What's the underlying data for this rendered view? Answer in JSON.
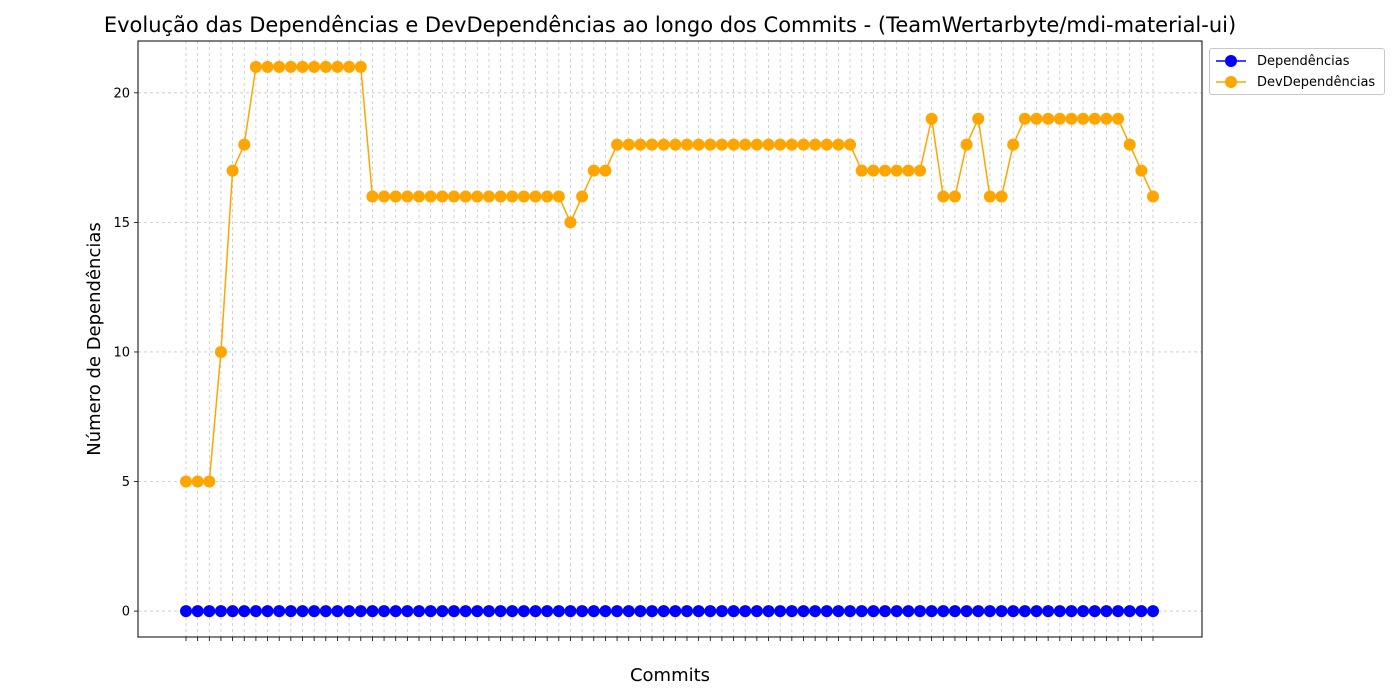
{
  "chart_data": {
    "type": "line",
    "title": "Evolução das Dependências e DevDependências ao longo dos Commits - (TeamWertarbyte/mdi-material-ui)",
    "xlabel": "Commits",
    "ylabel": "Número de Dependências",
    "ylim": [
      -1,
      22
    ],
    "yticks": [
      0,
      5,
      10,
      15,
      20
    ],
    "grid": true,
    "legend_position": "upper right, outside plot",
    "num_commits": 84,
    "series": [
      {
        "name": "Dependências",
        "color": "#0000ff",
        "values": [
          0,
          0,
          0,
          0,
          0,
          0,
          0,
          0,
          0,
          0,
          0,
          0,
          0,
          0,
          0,
          0,
          0,
          0,
          0,
          0,
          0,
          0,
          0,
          0,
          0,
          0,
          0,
          0,
          0,
          0,
          0,
          0,
          0,
          0,
          0,
          0,
          0,
          0,
          0,
          0,
          0,
          0,
          0,
          0,
          0,
          0,
          0,
          0,
          0,
          0,
          0,
          0,
          0,
          0,
          0,
          0,
          0,
          0,
          0,
          0,
          0,
          0,
          0,
          0,
          0,
          0,
          0,
          0,
          0,
          0,
          0,
          0,
          0,
          0,
          0,
          0,
          0,
          0,
          0,
          0,
          0,
          0,
          0,
          0
        ]
      },
      {
        "name": "DevDependências",
        "color": "#ffa500",
        "values": [
          5,
          5,
          5,
          10,
          17,
          18,
          21,
          21,
          21,
          21,
          21,
          21,
          21,
          21,
          21,
          21,
          16,
          16,
          16,
          16,
          16,
          16,
          16,
          16,
          16,
          16,
          16,
          16,
          16,
          16,
          16,
          16,
          16,
          15,
          16,
          17,
          17,
          18,
          18,
          18,
          18,
          18,
          18,
          18,
          18,
          18,
          18,
          18,
          18,
          18,
          18,
          18,
          18,
          18,
          18,
          18,
          18,
          18,
          17,
          17,
          17,
          17,
          17,
          17,
          19,
          16,
          16,
          18,
          19,
          16,
          16,
          18,
          19,
          19,
          19,
          19,
          19,
          19,
          19,
          19,
          19,
          18,
          17,
          16
        ]
      }
    ]
  }
}
